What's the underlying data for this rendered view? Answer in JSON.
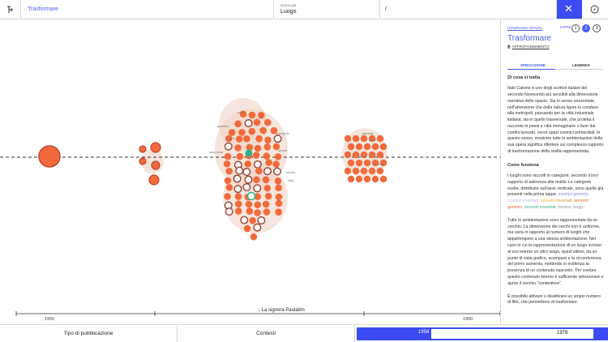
{
  "topbar": {
    "title": "Trasformare",
    "cerca_label": "Cerca per",
    "cerca_value": "Luogo",
    "path": "/",
    "close_icon": "close-icon",
    "compass_icon": "compass-icon"
  },
  "viz": {
    "story_label": "↓ La signora Paulatim",
    "axis_ticks": [
      "1956",
      "1960"
    ],
    "node_labels": [
      "ecco",
      "giardino",
      "mare",
      "macchina",
      "metropoli",
      "strada",
      "mondo",
      "città",
      "pianeta",
      "mare",
      "luna",
      "deserto"
    ],
    "colors": {
      "node": "#f26a3c",
      "node_stroke": "#c0442a",
      "halo": "#f0d3c4",
      "accent": "#2cb38a"
    }
  },
  "panel": {
    "breadcrumb": "ITINERARIO SPAZIO",
    "tappe_label": "TAPPE",
    "steps": [
      "1",
      "2",
      "3"
    ],
    "title": "Trasformare",
    "link": "APPROFONDIMENTO",
    "tab_spiegazione": "SPIEGAZIONE",
    "tab_legenda": "LEGENDA",
    "h1": "Di cosa si tratta",
    "p1": "Italo Calvino è uno degli scrittori italiani del secondo Novecento più sensibili alla dimensione narrativa dello spazio. Sia in senso orizzontale, nell'attenzione che dalla natura ligure lo conduce alla metropoli, passando per la città industriale italiana; sia in quello trasversale, che proietta il racconto in paesi e città immaginarie o fuori dai confini terrestri, verso spazi cosmici primordiali. In questo senso, mostrare tutte le ambientazioni della sua opera significa riflettere sul complesso rapporto di trasformazione della realtà rappresentata.",
    "h2": "Come funziona",
    "p2_a": "I luoghi sono raccolti in categorie, secondo il loro rapporto di aderenza alla realtà. Le categorie scelte, distribuite sull'asse verticale, sono quelle già presenti nella prima tappe:",
    "cat1": "cosmici generici,",
    "cat2": "cosmici inventati,",
    "cat3": "terrestri",
    "cat4": "inventati,",
    "cat5": "terrestri generici,",
    "cat6": "terrestri",
    "cat7": "inventati,",
    "cat8": "nessun luogo.",
    "p3": "Tutte le ambientazioni sono rappresentate da un cerchio. La dimensione dei cerchi non è uniforme, ma varia in rapporto al numero di luoghi che appartengono a una stessa ambientazione. Nel caso in cui la rappresentazione di un luogo incluso al suo interno un altro luogo, quest'ultimo, da un punto di vista grafico, scompare e la circonferenza del primo aumenta, mettendo in evidenza la presenza di un contenuto nascosto. Per svelare questo contenuto interno è sufficiente selezionare e aprire il cerchio \"contenitore\".",
    "p4": "È possibile attivare o disattivare un ampio numero di filtri, che permettono di trasformare"
  },
  "bottombar": {
    "tipo": "Tipo di pubblicazione",
    "contesti": "Contesti",
    "year_start": "1958",
    "year_end": "1978"
  }
}
